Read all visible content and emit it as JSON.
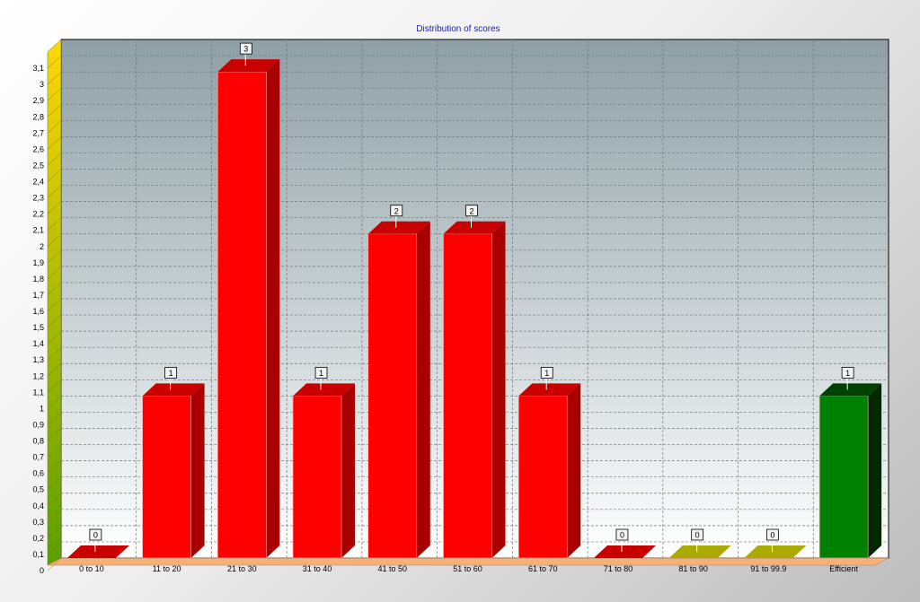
{
  "chart_data": {
    "type": "bar",
    "title": "Distribution of scores",
    "xlabel": "",
    "ylabel": "",
    "ylim": [
      0,
      3.2
    ],
    "grid": true,
    "yticks": [
      "0",
      "0,1",
      "0,2",
      "0,3",
      "0,4",
      "0,5",
      "0,6",
      "0,7",
      "0,8",
      "0,9",
      "1",
      "1,1",
      "1,2",
      "1,3",
      "1,4",
      "1,5",
      "1,6",
      "1,7",
      "1,8",
      "1,9",
      "2",
      "2,1",
      "2,2",
      "2,3",
      "2,4",
      "2,5",
      "2,6",
      "2,7",
      "2,8",
      "2,9",
      "3",
      "3,1"
    ],
    "categories": [
      "0 to 10",
      "11 to 20",
      "21 to 30",
      "31 to 40",
      "41 to 50",
      "51 to 60",
      "61 to 70",
      "71 to 80",
      "81 to 90",
      "91 to 99.9",
      "Efficient"
    ],
    "values": [
      0,
      1,
      3,
      1,
      2,
      2,
      1,
      0,
      0,
      0,
      1
    ],
    "data_labels": [
      "0",
      "1",
      "3",
      "1",
      "2",
      "2",
      "1",
      "0",
      "0",
      "0",
      "1"
    ],
    "bar_colors": [
      "#ff0000",
      "#ff0000",
      "#ff0000",
      "#ff0000",
      "#ff0000",
      "#ff0000",
      "#ff0000",
      "#ff0000",
      "#c8c800",
      "#c8c800",
      "#008000"
    ],
    "bar_side_colors": [
      "#a80000",
      "#a80000",
      "#a80000",
      "#a80000",
      "#a80000",
      "#a80000",
      "#a80000",
      "#a80000",
      "#8c8c00",
      "#8c8c00",
      "#002800"
    ],
    "bar_top_colors": [
      "#c80000",
      "#c80000",
      "#c80000",
      "#c80000",
      "#c80000",
      "#c80000",
      "#c80000",
      "#c80000",
      "#aaaa00",
      "#aaaa00",
      "#004000"
    ]
  }
}
